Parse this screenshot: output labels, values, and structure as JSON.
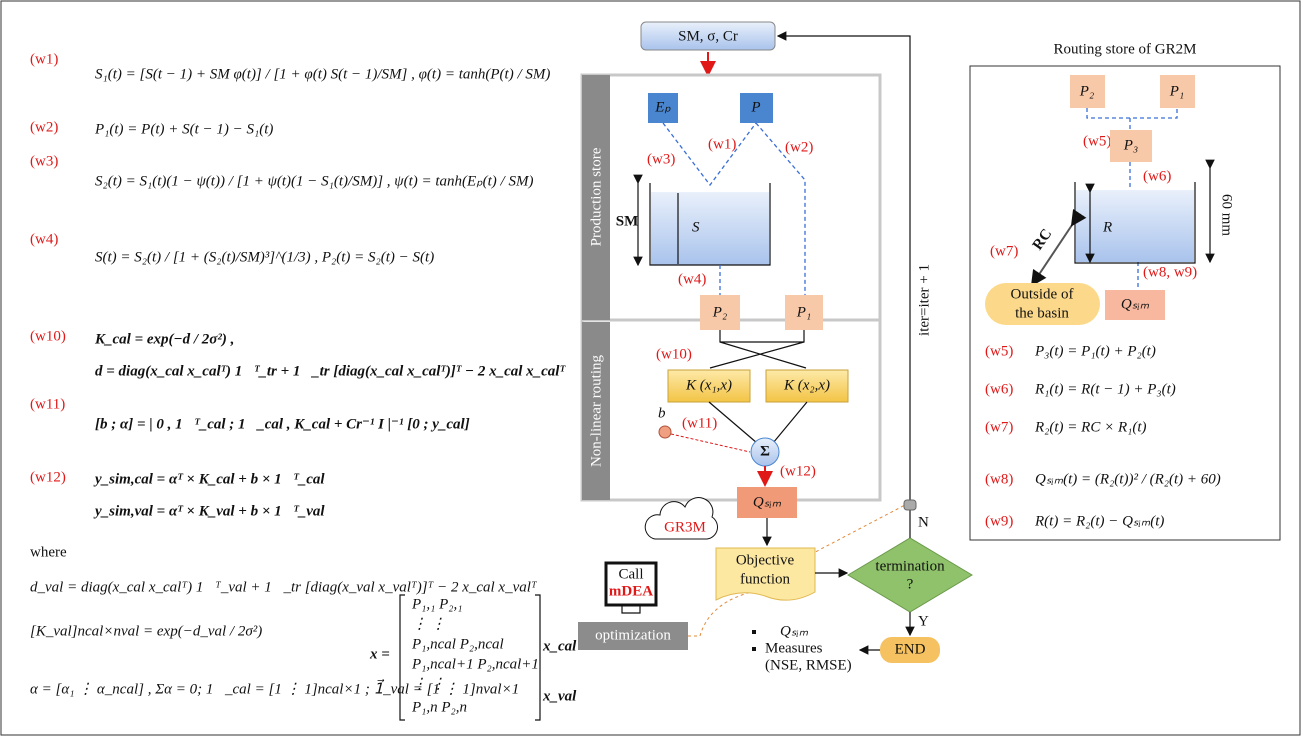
{
  "equations": [
    {
      "label": "(w1)",
      "lines": [
        "S₁(t) = [S(t − 1) + SM φ(t)] / [1 + φ(t) S(t − 1)/SM] ,     φ(t) = tanh(P(t) / SM)"
      ]
    },
    {
      "label": "(w2)",
      "lines": [
        "P₁(t) = P(t) + S(t − 1) − S₁(t)"
      ]
    },
    {
      "label": "(w3)",
      "lines": [
        "S₂(t) = S₁(t)(1 − ψ(t)) / [1 + ψ(t)(1 − S₁(t)/SM)] ,     ψ(t) = tanh(Eₚ(t) / SM)"
      ]
    },
    {
      "label": "(w4)",
      "lines": [
        "S(t) = S₂(t) / [1 + (S₂(t)/SM)³]^(1/3) ,       P₂(t) = S₂(t) − S(t)"
      ]
    },
    {
      "label": "(w10)",
      "lines": [
        "K_cal = exp(−d / 2σ²) ,",
        "d = diag(x_cal x_calᵀ) 1⃗ᵀ_tr + 1⃗_tr [diag(x_cal x_calᵀ)]ᵀ − 2 x_cal x_calᵀ"
      ]
    },
    {
      "label": "(w11)",
      "lines": [
        "[b ; α] = | 0 , 1⃗ᵀ_cal ; 1⃗_cal , K_cal + Cr⁻¹ I |⁻¹ [0 ; y_cal]"
      ]
    },
    {
      "label": "(w12)",
      "lines": [
        "y_sim,cal = αᵀ × K_cal + b × 1⃗ᵀ_cal",
        "y_sim,val = αᵀ × K_val + b × 1⃗ᵀ_val"
      ]
    }
  ],
  "where": {
    "title": "where",
    "lines": [
      "d_val = diag(x_cal x_calᵀ) 1⃗ᵀ_val + 1⃗_tr [diag(x_val x_valᵀ)]ᵀ − 2 x_cal x_valᵀ",
      "[K_val]ncal×nval = exp(−d_val / 2σ²)",
      "α = [α₁ ⋮ α_ncal] , Σα = 0;  1⃗_cal = [1 ⋮ 1]ncal×1 ;  1⃗_val = [1 ⋮ 1]nval×1"
    ],
    "matrix_label": "x =",
    "matrix_rows": [
      "P₁,₁        P₂,₁",
      "⋮             ⋮",
      "P₁,ncal    P₂,ncal",
      "P₁,ncal+1  P₂,ncal+1",
      "⋮             ⋮",
      "P₁,n        P₂,n"
    ],
    "x_cal": "x_cal",
    "x_val": "x_val"
  },
  "flowchart": {
    "inputs": "SM, σ, Cr",
    "production_store": "Production store",
    "nonlinear_routing": "Non-linear routing",
    "ep": "Eₚ",
    "p": "P",
    "w3": "(w3)",
    "w1": "(w1)",
    "w2": "(w2)",
    "w4": "(w4)",
    "sm": "SM",
    "s": "S",
    "p2": "P₂",
    "p1": "P₁",
    "w10": "(w10)",
    "k1": "K (x₁,x)",
    "k2": "K (x₂,x)",
    "b": "b",
    "w11": "(w11)",
    "sigma": "Σ",
    "w12": "(w12)",
    "qsim": "Qₛᵢₘ",
    "cloud": "GR3M",
    "call": "Call",
    "mdea": "mDEA",
    "optimization": "optimization",
    "objective": [
      "Objective",
      "function"
    ],
    "termination": [
      "termination",
      "?"
    ],
    "iter": "iter=iter + 1",
    "n": "N",
    "y": "Y",
    "end": "END",
    "outputs": [
      "Qₛᵢₘ",
      "Measures",
      "(NSE, RMSE)"
    ]
  },
  "routing": {
    "title": "Routing store of GR2M",
    "p2": "P₂",
    "p1": "P₁",
    "w5": "(w5)",
    "p3": "P₃",
    "w6": "(w6)",
    "r": "R",
    "mm": "60 mm",
    "rc": "RC",
    "w7": "(w7)",
    "w89": "(w8, w9)",
    "outside": [
      "Outside of",
      "the basin"
    ],
    "qsim": "Qₛᵢₘ",
    "equations": [
      {
        "label": "(w5)",
        "text": "P₃(t) = P₁(t) + P₂(t)"
      },
      {
        "label": "(w6)",
        "text": "R₁(t) = R(t − 1) + P₃(t)"
      },
      {
        "label": "(w7)",
        "text": "R₂(t) = RC × R₁(t)"
      },
      {
        "label": "(w8)",
        "text": "Qₛᵢₘ(t) = (R₂(t))² / (R₂(t) + 60)"
      },
      {
        "label": "(w9)",
        "text": "R(t) = R₂(t) − Qₛᵢₘ(t)"
      }
    ]
  }
}
